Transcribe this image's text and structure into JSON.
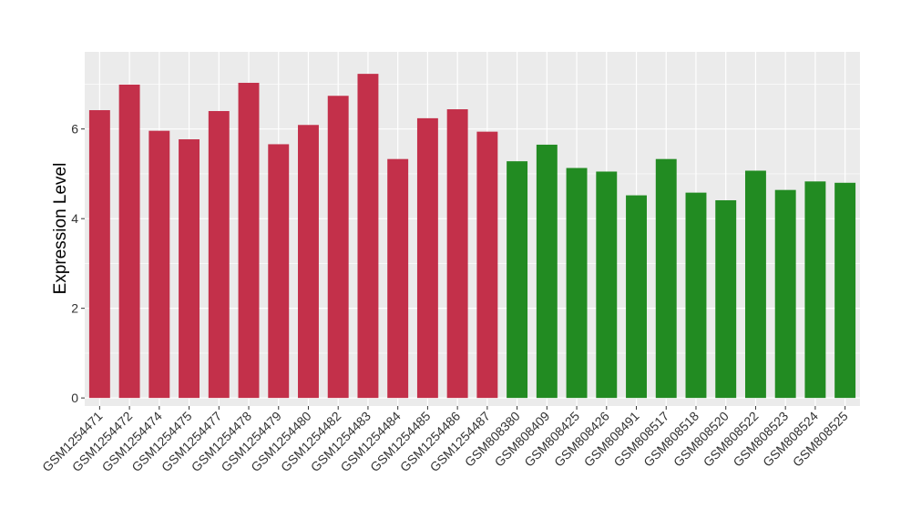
{
  "chart_data": {
    "type": "bar",
    "title": "",
    "xlabel": "",
    "ylabel": "Expression Level",
    "ylim": [
      -0.18,
      7.72
    ],
    "yticks": [
      0,
      2,
      4,
      6
    ],
    "grid": true,
    "legend": "none",
    "categories": [
      "GSM1254471",
      "GSM1254472",
      "GSM1254474",
      "GSM1254475",
      "GSM1254477",
      "GSM1254478",
      "GSM1254479",
      "GSM1254480",
      "GSM1254482",
      "GSM1254483",
      "GSM1254484",
      "GSM1254485",
      "GSM1254486",
      "GSM1254487",
      "GSM808380",
      "GSM808409",
      "GSM808425",
      "GSM808426",
      "GSM808491",
      "GSM808517",
      "GSM808518",
      "GSM808520",
      "GSM808522",
      "GSM808523",
      "GSM808524",
      "GSM808525"
    ],
    "values": [
      6.42,
      6.99,
      5.96,
      5.77,
      6.4,
      7.03,
      5.66,
      6.09,
      6.74,
      7.23,
      5.33,
      6.24,
      6.44,
      5.94,
      5.28,
      5.65,
      5.13,
      5.05,
      4.52,
      5.33,
      4.58,
      4.41,
      5.07,
      4.64,
      4.83,
      4.8
    ],
    "colors": [
      "#c3304a",
      "#c3304a",
      "#c3304a",
      "#c3304a",
      "#c3304a",
      "#c3304a",
      "#c3304a",
      "#c3304a",
      "#c3304a",
      "#c3304a",
      "#c3304a",
      "#c3304a",
      "#c3304a",
      "#c3304a",
      "#228b22",
      "#228b22",
      "#228b22",
      "#228b22",
      "#228b22",
      "#228b22",
      "#228b22",
      "#228b22",
      "#228b22",
      "#228b22",
      "#228b22",
      "#228b22"
    ],
    "panel_color": "#ebebeb",
    "grid_color": "#ffffff"
  }
}
